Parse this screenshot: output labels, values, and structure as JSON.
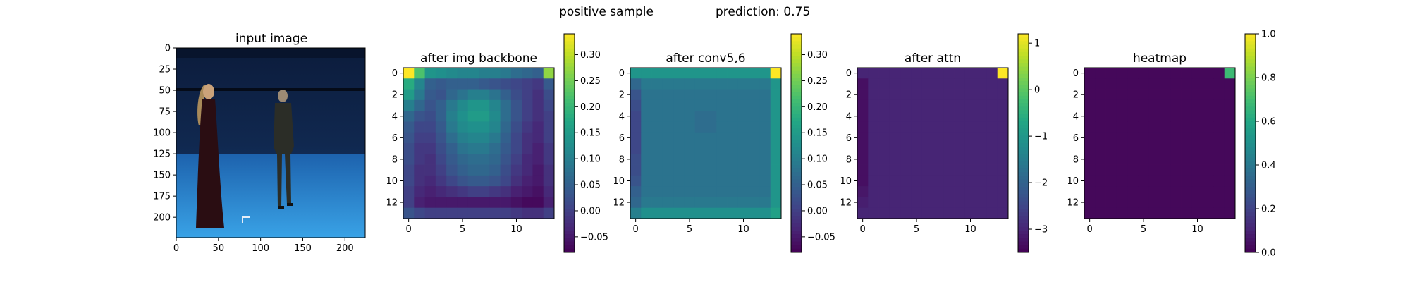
{
  "suptitle": {
    "left": "positive sample",
    "right": "prediction: 0.75"
  },
  "chart_data": [
    {
      "type": "image",
      "title": "input image",
      "image_description_semantic": "photo of a blue-screen studio with two people standing: a woman in a long dark dress with long blond hair on the left and a man in a dark suit on the right; camera rig bar near the top",
      "xlim": [
        0,
        224
      ],
      "ylim": [
        224,
        0
      ],
      "xticks": [
        0,
        50,
        100,
        150,
        200
      ],
      "yticks": [
        0,
        25,
        50,
        75,
        100,
        125,
        150,
        175,
        200
      ]
    },
    {
      "type": "heatmap",
      "title": "after img backbone",
      "colormap": "viridis",
      "grid_size": [
        14,
        14
      ],
      "xticks": [
        0,
        5,
        10
      ],
      "yticks": [
        0,
        2,
        4,
        6,
        8,
        10,
        12
      ],
      "colorbar": {
        "min": -0.08,
        "max": 0.34,
        "ticks": [
          -0.05,
          0.0,
          0.05,
          0.1,
          0.15,
          0.2,
          0.25,
          0.3
        ],
        "tick_labels": [
          "−0.05",
          "0.00",
          "0.05",
          "0.10",
          "0.15",
          "0.20",
          "0.25",
          "0.30"
        ]
      },
      "values": [
        [
          0.34,
          0.22,
          0.14,
          0.13,
          0.12,
          0.11,
          0.11,
          0.1,
          0.1,
          0.09,
          0.07,
          0.06,
          0.05,
          0.27
        ],
        [
          0.18,
          0.11,
          0.05,
          0.04,
          0.05,
          0.05,
          0.05,
          0.04,
          0.03,
          0.02,
          0.01,
          0.0,
          -0.01,
          0.04
        ],
        [
          0.15,
          0.09,
          0.04,
          0.03,
          0.06,
          0.08,
          0.1,
          0.1,
          0.08,
          0.05,
          0.02,
          0.0,
          -0.02,
          0.02
        ],
        [
          0.1,
          0.06,
          0.03,
          0.05,
          0.09,
          0.12,
          0.14,
          0.14,
          0.11,
          0.07,
          0.03,
          0.0,
          -0.02,
          0.01
        ],
        [
          0.06,
          0.03,
          0.02,
          0.05,
          0.1,
          0.13,
          0.15,
          0.15,
          0.12,
          0.07,
          0.03,
          0.0,
          -0.02,
          0.0
        ],
        [
          0.04,
          0.01,
          0.01,
          0.04,
          0.09,
          0.12,
          0.13,
          0.13,
          0.11,
          0.06,
          0.02,
          -0.01,
          -0.03,
          0.0
        ],
        [
          0.03,
          0.0,
          0.0,
          0.03,
          0.07,
          0.1,
          0.11,
          0.11,
          0.09,
          0.05,
          0.01,
          -0.02,
          -0.03,
          0.0
        ],
        [
          0.02,
          -0.01,
          -0.01,
          0.02,
          0.05,
          0.08,
          0.09,
          0.09,
          0.07,
          0.04,
          0.01,
          -0.02,
          -0.04,
          -0.01
        ],
        [
          0.02,
          -0.01,
          -0.02,
          0.01,
          0.04,
          0.06,
          0.07,
          0.07,
          0.06,
          0.03,
          0.0,
          -0.03,
          -0.04,
          -0.01
        ],
        [
          0.01,
          -0.02,
          -0.02,
          0.0,
          0.03,
          0.05,
          0.06,
          0.06,
          0.05,
          0.02,
          -0.01,
          -0.03,
          -0.05,
          -0.02
        ],
        [
          0.01,
          -0.02,
          -0.03,
          -0.01,
          0.01,
          0.03,
          0.04,
          0.04,
          0.03,
          0.01,
          -0.02,
          -0.04,
          -0.05,
          -0.02
        ],
        [
          0.0,
          -0.03,
          -0.04,
          -0.03,
          -0.02,
          -0.01,
          0.0,
          0.0,
          -0.01,
          -0.02,
          -0.04,
          -0.05,
          -0.06,
          -0.03
        ],
        [
          0.0,
          -0.04,
          -0.05,
          -0.05,
          -0.05,
          -0.05,
          -0.05,
          -0.05,
          -0.05,
          -0.05,
          -0.06,
          -0.07,
          -0.07,
          -0.04
        ],
        [
          0.03,
          0.01,
          0.0,
          0.0,
          0.0,
          0.0,
          0.0,
          0.0,
          0.0,
          0.0,
          -0.01,
          -0.02,
          -0.02,
          0.0
        ]
      ]
    },
    {
      "type": "heatmap",
      "title": "after conv5,6",
      "colormap": "viridis",
      "grid_size": [
        14,
        14
      ],
      "xticks": [
        0,
        5,
        10
      ],
      "yticks": [
        0,
        2,
        4,
        6,
        8,
        10,
        12
      ],
      "colorbar": {
        "min": -0.08,
        "max": 0.34,
        "ticks": [
          -0.05,
          0.0,
          0.05,
          0.1,
          0.15,
          0.2,
          0.25,
          0.3
        ],
        "tick_labels": [
          "−0.05",
          "0.00",
          "0.05",
          "0.10",
          "0.15",
          "0.20",
          "0.25",
          "0.30"
        ]
      },
      "values": [
        [
          0.14,
          0.14,
          0.14,
          0.14,
          0.14,
          0.14,
          0.14,
          0.14,
          0.14,
          0.14,
          0.14,
          0.14,
          0.14,
          0.34
        ],
        [
          0.06,
          0.09,
          0.09,
          0.09,
          0.09,
          0.09,
          0.09,
          0.09,
          0.09,
          0.09,
          0.09,
          0.09,
          0.09,
          0.14
        ],
        [
          0.03,
          0.08,
          0.08,
          0.08,
          0.08,
          0.08,
          0.08,
          0.08,
          0.08,
          0.08,
          0.08,
          0.08,
          0.08,
          0.14
        ],
        [
          0.02,
          0.08,
          0.08,
          0.08,
          0.08,
          0.08,
          0.08,
          0.08,
          0.08,
          0.08,
          0.08,
          0.08,
          0.08,
          0.14
        ],
        [
          0.01,
          0.08,
          0.08,
          0.08,
          0.08,
          0.08,
          0.07,
          0.07,
          0.08,
          0.08,
          0.08,
          0.08,
          0.08,
          0.14
        ],
        [
          0.01,
          0.08,
          0.08,
          0.08,
          0.08,
          0.08,
          0.07,
          0.07,
          0.08,
          0.08,
          0.08,
          0.08,
          0.08,
          0.14
        ],
        [
          0.01,
          0.08,
          0.08,
          0.08,
          0.08,
          0.08,
          0.08,
          0.08,
          0.08,
          0.08,
          0.08,
          0.08,
          0.08,
          0.14
        ],
        [
          0.01,
          0.08,
          0.08,
          0.08,
          0.08,
          0.08,
          0.08,
          0.08,
          0.08,
          0.08,
          0.08,
          0.08,
          0.08,
          0.14
        ],
        [
          0.02,
          0.08,
          0.08,
          0.08,
          0.08,
          0.08,
          0.08,
          0.08,
          0.08,
          0.08,
          0.08,
          0.08,
          0.08,
          0.14
        ],
        [
          0.02,
          0.08,
          0.08,
          0.08,
          0.08,
          0.08,
          0.08,
          0.08,
          0.08,
          0.08,
          0.08,
          0.08,
          0.08,
          0.14
        ],
        [
          0.03,
          0.08,
          0.08,
          0.08,
          0.08,
          0.08,
          0.08,
          0.08,
          0.08,
          0.08,
          0.08,
          0.08,
          0.08,
          0.14
        ],
        [
          0.05,
          0.08,
          0.08,
          0.08,
          0.08,
          0.08,
          0.08,
          0.08,
          0.08,
          0.08,
          0.08,
          0.08,
          0.08,
          0.14
        ],
        [
          0.06,
          0.09,
          0.09,
          0.09,
          0.09,
          0.09,
          0.09,
          0.09,
          0.09,
          0.09,
          0.09,
          0.09,
          0.09,
          0.14
        ],
        [
          0.1,
          0.13,
          0.13,
          0.13,
          0.13,
          0.13,
          0.13,
          0.13,
          0.13,
          0.13,
          0.13,
          0.13,
          0.13,
          0.16
        ]
      ]
    },
    {
      "type": "heatmap",
      "title": "after attn",
      "colormap": "viridis",
      "grid_size": [
        14,
        14
      ],
      "xticks": [
        0,
        5,
        10
      ],
      "yticks": [
        0,
        2,
        4,
        6,
        8,
        10,
        12
      ],
      "colorbar": {
        "min": -3.5,
        "max": 1.2,
        "ticks": [
          -3,
          -2,
          -1,
          0,
          1
        ],
        "tick_labels": [
          "−3",
          "−2",
          "−1",
          "0",
          "1"
        ]
      },
      "values": [
        [
          -3.0,
          -3.0,
          -3.0,
          -3.0,
          -3.0,
          -3.0,
          -3.0,
          -3.0,
          -3.0,
          -3.0,
          -3.0,
          -3.0,
          -3.0,
          1.2
        ],
        [
          -3.3,
          -3.0,
          -3.0,
          -3.0,
          -3.0,
          -3.0,
          -3.0,
          -3.0,
          -3.0,
          -3.0,
          -3.0,
          -3.0,
          -3.0,
          -3.0
        ],
        [
          -3.3,
          -3.0,
          -3.0,
          -3.0,
          -3.0,
          -3.0,
          -3.0,
          -3.0,
          -3.0,
          -3.0,
          -3.0,
          -3.0,
          -3.0,
          -3.0
        ],
        [
          -3.3,
          -3.0,
          -3.0,
          -3.0,
          -3.0,
          -3.0,
          -3.0,
          -3.0,
          -3.0,
          -3.0,
          -3.0,
          -3.0,
          -3.0,
          -3.0
        ],
        [
          -3.3,
          -3.0,
          -3.0,
          -3.0,
          -3.0,
          -3.0,
          -3.0,
          -3.0,
          -3.0,
          -3.0,
          -3.0,
          -3.0,
          -3.0,
          -3.0
        ],
        [
          -3.3,
          -3.0,
          -3.0,
          -3.0,
          -3.0,
          -3.0,
          -3.0,
          -3.0,
          -3.0,
          -3.0,
          -3.0,
          -3.0,
          -3.0,
          -3.0
        ],
        [
          -3.3,
          -3.0,
          -3.0,
          -3.0,
          -3.0,
          -3.0,
          -3.0,
          -3.0,
          -3.0,
          -3.0,
          -3.0,
          -3.0,
          -3.0,
          -3.0
        ],
        [
          -3.3,
          -3.0,
          -3.0,
          -3.0,
          -3.0,
          -3.0,
          -3.0,
          -3.0,
          -3.0,
          -3.0,
          -3.0,
          -3.0,
          -3.0,
          -3.0
        ],
        [
          -3.3,
          -3.0,
          -3.0,
          -3.0,
          -3.0,
          -3.0,
          -3.0,
          -3.0,
          -3.0,
          -3.0,
          -3.0,
          -3.0,
          -3.0,
          -3.0
        ],
        [
          -3.3,
          -3.0,
          -3.0,
          -3.0,
          -3.0,
          -3.0,
          -3.0,
          -3.0,
          -3.0,
          -3.0,
          -3.0,
          -3.0,
          -3.0,
          -3.0
        ],
        [
          -3.3,
          -3.0,
          -3.0,
          -3.0,
          -3.0,
          -3.0,
          -3.0,
          -3.0,
          -3.0,
          -3.0,
          -3.0,
          -3.0,
          -3.0,
          -3.0
        ],
        [
          -3.2,
          -3.0,
          -3.0,
          -3.0,
          -3.0,
          -3.0,
          -3.0,
          -3.0,
          -3.0,
          -3.0,
          -3.0,
          -3.0,
          -3.0,
          -3.0
        ],
        [
          -3.1,
          -3.0,
          -3.0,
          -3.0,
          -3.0,
          -3.0,
          -3.0,
          -3.0,
          -3.0,
          -3.0,
          -3.0,
          -3.0,
          -3.0,
          -3.0
        ],
        [
          -3.0,
          -3.0,
          -3.0,
          -3.0,
          -3.0,
          -3.0,
          -3.0,
          -3.0,
          -3.0,
          -3.0,
          -3.0,
          -3.0,
          -3.0,
          -3.0
        ]
      ]
    },
    {
      "type": "heatmap",
      "title": "heatmap",
      "colormap": "viridis",
      "grid_size": [
        14,
        14
      ],
      "xticks": [
        0,
        5,
        10
      ],
      "yticks": [
        0,
        2,
        4,
        6,
        8,
        10,
        12
      ],
      "colorbar": {
        "min": 0.0,
        "max": 1.0,
        "ticks": [
          0.0,
          0.2,
          0.4,
          0.6,
          0.8,
          1.0
        ],
        "tick_labels": [
          "0.0",
          "0.2",
          "0.4",
          "0.6",
          "0.8",
          "1.0"
        ]
      },
      "values": [
        [
          0.02,
          0.02,
          0.02,
          0.02,
          0.02,
          0.02,
          0.02,
          0.02,
          0.02,
          0.02,
          0.02,
          0.02,
          0.02,
          0.68
        ],
        [
          0.02,
          0.02,
          0.02,
          0.02,
          0.02,
          0.02,
          0.02,
          0.02,
          0.02,
          0.02,
          0.02,
          0.02,
          0.02,
          0.02
        ],
        [
          0.02,
          0.02,
          0.02,
          0.02,
          0.02,
          0.02,
          0.02,
          0.02,
          0.02,
          0.02,
          0.02,
          0.02,
          0.02,
          0.02
        ],
        [
          0.02,
          0.02,
          0.02,
          0.02,
          0.02,
          0.02,
          0.02,
          0.02,
          0.02,
          0.02,
          0.02,
          0.02,
          0.02,
          0.02
        ],
        [
          0.02,
          0.02,
          0.02,
          0.02,
          0.02,
          0.02,
          0.02,
          0.02,
          0.02,
          0.02,
          0.02,
          0.02,
          0.02,
          0.02
        ],
        [
          0.02,
          0.02,
          0.02,
          0.02,
          0.02,
          0.02,
          0.02,
          0.02,
          0.02,
          0.02,
          0.02,
          0.02,
          0.02,
          0.02
        ],
        [
          0.02,
          0.02,
          0.02,
          0.02,
          0.02,
          0.02,
          0.02,
          0.02,
          0.02,
          0.02,
          0.02,
          0.02,
          0.02,
          0.02
        ],
        [
          0.02,
          0.02,
          0.02,
          0.02,
          0.02,
          0.02,
          0.02,
          0.02,
          0.02,
          0.02,
          0.02,
          0.02,
          0.02,
          0.02
        ],
        [
          0.02,
          0.02,
          0.02,
          0.02,
          0.02,
          0.02,
          0.02,
          0.02,
          0.02,
          0.02,
          0.02,
          0.02,
          0.02,
          0.02
        ],
        [
          0.02,
          0.02,
          0.02,
          0.02,
          0.02,
          0.02,
          0.02,
          0.02,
          0.02,
          0.02,
          0.02,
          0.02,
          0.02,
          0.02
        ],
        [
          0.02,
          0.02,
          0.02,
          0.02,
          0.02,
          0.02,
          0.02,
          0.02,
          0.02,
          0.02,
          0.02,
          0.02,
          0.02,
          0.02
        ],
        [
          0.02,
          0.02,
          0.02,
          0.02,
          0.02,
          0.02,
          0.02,
          0.02,
          0.02,
          0.02,
          0.02,
          0.02,
          0.02,
          0.02
        ],
        [
          0.02,
          0.02,
          0.02,
          0.02,
          0.02,
          0.02,
          0.02,
          0.02,
          0.02,
          0.02,
          0.02,
          0.02,
          0.02,
          0.02
        ],
        [
          0.02,
          0.02,
          0.02,
          0.02,
          0.02,
          0.02,
          0.02,
          0.02,
          0.02,
          0.02,
          0.02,
          0.02,
          0.02,
          0.02
        ]
      ]
    }
  ]
}
